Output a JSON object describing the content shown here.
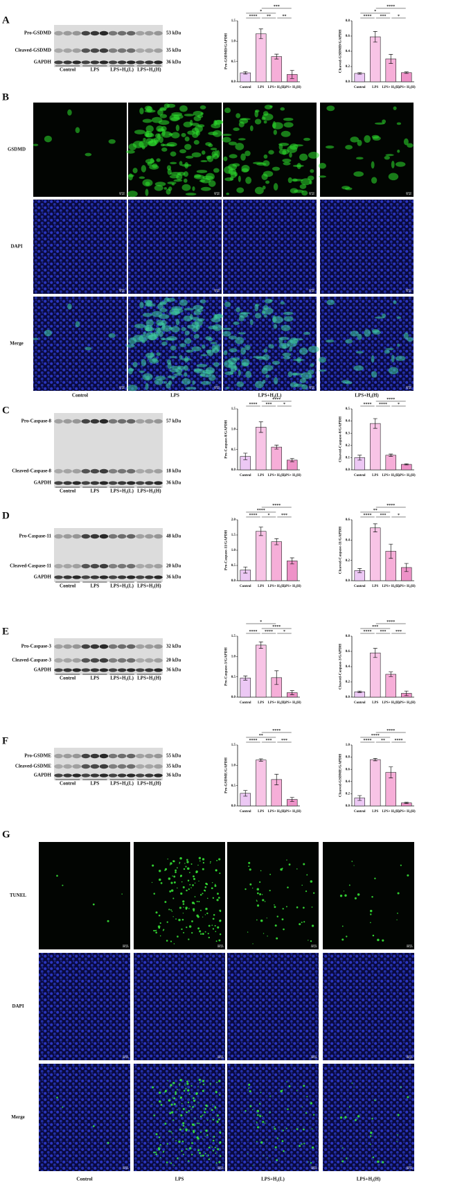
{
  "panel_letters": [
    "A",
    "B",
    "C",
    "D",
    "E",
    "F",
    "G"
  ],
  "blots": [
    {
      "bands": [
        {
          "name": "Pro-GSDMD",
          "size": "53 kDa"
        },
        {
          "name": "Cleaved-GSDMD",
          "size": "35 kDa"
        },
        {
          "name": "GAPDH",
          "size": "36 kDa"
        }
      ],
      "groups": [
        "Control",
        "LPS",
        "LPS+H₂(L)",
        "LPS+H₂(H)"
      ]
    },
    {
      "bands": [
        {
          "name": "Pro-Caspase-8",
          "size": "57 kDa"
        },
        {
          "name": "Cleaved-Caspase-8",
          "size": "18 kDa"
        },
        {
          "name": "GAPDH",
          "size": "36 kDa"
        }
      ],
      "groups": [
        "Control",
        "LPS",
        "LPS+H₂(L)",
        "LPS+H₂(H)"
      ]
    },
    {
      "bands": [
        {
          "name": "Pro-Caspase-11",
          "size": "48 kDa"
        },
        {
          "name": "Cleaved-Caspase-11",
          "size": "20 kDa"
        },
        {
          "name": "GAPDH",
          "size": "36 kDa"
        }
      ],
      "groups": [
        "Control",
        "LPS",
        "LPS+H₂(L)",
        "LPS+H₂(H)"
      ]
    },
    {
      "bands": [
        {
          "name": "Pro-Caspase-3",
          "size": "32 kDa"
        },
        {
          "name": "Cleaved-Caspase-3",
          "size": "20 kDa"
        },
        {
          "name": "GAPDH",
          "size": "36 kDa"
        }
      ],
      "groups": [
        "Control",
        "LPS",
        "LPS+H₂(L)",
        "LPS+H₂(H)"
      ]
    },
    {
      "bands": [
        {
          "name": "Pro-GSDME",
          "size": "55 kDa"
        },
        {
          "name": "Cleaved-GSDME",
          "size": "35 kDa"
        },
        {
          "name": "GAPDH",
          "size": "36 kDa"
        }
      ],
      "groups": [
        "Control",
        "LPS",
        "LPS+H₂(L)",
        "LPS+H₂(H)"
      ]
    }
  ],
  "imaging": [
    {
      "rows": [
        "GSDMD",
        "DAPI",
        "Merge"
      ],
      "columns": [
        "Control",
        "LPS",
        "LPS+H₂(L)",
        "LPS+H₂(H)"
      ],
      "scale_bar": "50 μm"
    },
    {
      "rows": [
        "TUNEL",
        "DAPI",
        "Merge"
      ],
      "columns": [
        "Control",
        "LPS",
        "LPS+H₂(L)",
        "LPS+H₂(H)"
      ],
      "scale_bar": "100 μm"
    }
  ],
  "chart_data": [
    {
      "type": "bar",
      "ylabel": "Pro-GSDMD/GAPDH",
      "categories": [
        "Control",
        "LPS",
        "LPS+ H₂(L)",
        "LPS+ H₂(H)"
      ],
      "values": [
        0.22,
        1.18,
        0.62,
        0.18
      ],
      "errors": [
        0.03,
        0.12,
        0.06,
        0.1
      ],
      "colors": [
        "#ecc8f4",
        "#f8c4e6",
        "#f6aed8",
        "#ee92c8"
      ],
      "ylim": [
        0,
        1.5
      ],
      "yticks": [
        {
          "value": 0,
          "label": "0.0"
        },
        0.5,
        {
          "value": 1,
          "label": "1.0"
        },
        1.5
      ],
      "significance": [
        {
          "pair": [
            "Control",
            "LPS"
          ],
          "label": "****"
        },
        {
          "pair": [
            "LPS",
            "LPS+ H₂(L)"
          ],
          "label": "**"
        },
        {
          "pair": [
            "LPS+ H₂(L)",
            "LPS+ H₂(H)"
          ],
          "label": "**"
        },
        {
          "pair": [
            "Control",
            "LPS+ H₂(L)"
          ],
          "label": "*"
        },
        {
          "pair": [
            "LPS",
            "LPS+ H₂(H)"
          ],
          "label": "***"
        }
      ]
    },
    {
      "type": "bar",
      "ylabel": "Cleaved-GSDMD/GAPDH",
      "categories": [
        "Control",
        "LPS",
        "LPS+ H₂(L)",
        "LPS+ H₂(H)"
      ],
      "values": [
        0.11,
        0.59,
        0.3,
        0.12
      ],
      "errors": [
        0.01,
        0.07,
        0.06,
        0.01
      ],
      "colors": [
        "#ecc8f4",
        "#f8c4e6",
        "#f6aed8",
        "#ee92c8"
      ],
      "ylim": [
        0,
        0.8
      ],
      "yticks": [
        {
          "value": 0,
          "label": "0.0"
        },
        0.2,
        0.4,
        0.6,
        0.8
      ],
      "significance": [
        {
          "pair": [
            "Control",
            "LPS"
          ],
          "label": "****"
        },
        {
          "pair": [
            "LPS",
            "LPS+ H₂(L)"
          ],
          "label": "***"
        },
        {
          "pair": [
            "LPS+ H₂(L)",
            "LPS+ H₂(H)"
          ],
          "label": "*"
        },
        {
          "pair": [
            "Control",
            "LPS+ H₂(L)"
          ],
          "label": "*"
        },
        {
          "pair": [
            "LPS",
            "LPS+ H₂(H)"
          ],
          "label": "****"
        }
      ]
    },
    {
      "type": "bar",
      "ylabel": "Pro-Caspase-8/GAPDH",
      "categories": [
        "Control",
        "LPS",
        "LPS+ H₂(L)",
        "LPS+ H₂(H)"
      ],
      "values": [
        0.33,
        1.05,
        0.56,
        0.24
      ],
      "errors": [
        0.08,
        0.13,
        0.05,
        0.04
      ],
      "colors": [
        "#ecc8f4",
        "#f8c4e6",
        "#f6aed8",
        "#ee92c8"
      ],
      "ylim": [
        0,
        1.5
      ],
      "yticks": [
        {
          "value": 0,
          "label": "0.0"
        },
        0.5,
        {
          "value": 1,
          "label": "1.0"
        },
        1.5
      ],
      "significance": [
        {
          "pair": [
            "Control",
            "LPS"
          ],
          "label": "****"
        },
        {
          "pair": [
            "LPS",
            "LPS+ H₂(L)"
          ],
          "label": "***"
        },
        {
          "pair": [
            "LPS+ H₂(L)",
            "LPS+ H₂(H)"
          ],
          "label": "*"
        },
        {
          "pair": [
            "LPS",
            "LPS+ H₂(H)"
          ],
          "label": "****"
        }
      ]
    },
    {
      "type": "bar",
      "ylabel": "Cleaved-Caspase-8/GAPDH",
      "categories": [
        "Control",
        "LPS",
        "LPS+ H₂(L)",
        "LPS+ H₂(H)"
      ],
      "values": [
        0.1,
        0.38,
        0.12,
        0.045
      ],
      "errors": [
        0.02,
        0.04,
        0.01,
        0.005
      ],
      "colors": [
        "#ecc8f4",
        "#f8c4e6",
        "#f6aed8",
        "#ee92c8"
      ],
      "ylim": [
        0,
        0.5
      ],
      "yticks": [
        {
          "value": 0,
          "label": "0.0"
        },
        0.1,
        0.2,
        0.3,
        0.4,
        0.5
      ],
      "significance": [
        {
          "pair": [
            "Control",
            "LPS"
          ],
          "label": "****"
        },
        {
          "pair": [
            "LPS",
            "LPS+ H₂(L)"
          ],
          "label": "****"
        },
        {
          "pair": [
            "LPS+ H₂(L)",
            "LPS+ H₂(H)"
          ],
          "label": "*"
        },
        {
          "pair": [
            "LPS",
            "LPS+ H₂(H)"
          ],
          "label": "****"
        }
      ]
    },
    {
      "type": "bar",
      "ylabel": "Pro-Caspase-11/GAPDH",
      "categories": [
        "Control",
        "LPS",
        "LPS+ H₂(L)",
        "LPS+ H₂(H)"
      ],
      "values": [
        0.35,
        1.62,
        1.28,
        0.65
      ],
      "errors": [
        0.1,
        0.14,
        0.1,
        0.1
      ],
      "colors": [
        "#ecc8f4",
        "#f8c4e6",
        "#f6aed8",
        "#ee92c8"
      ],
      "ylim": [
        0,
        2
      ],
      "yticks": [
        {
          "value": 0,
          "label": "0.0"
        },
        0.5,
        {
          "value": 1,
          "label": "1.0"
        },
        1.5,
        {
          "value": 2,
          "label": "2.0"
        }
      ],
      "significance": [
        {
          "pair": [
            "Control",
            "LPS"
          ],
          "label": "****"
        },
        {
          "pair": [
            "LPS",
            "LPS+ H₂(L)"
          ],
          "label": "*"
        },
        {
          "pair": [
            "LPS+ H₂(L)",
            "LPS+ H₂(H)"
          ],
          "label": "***"
        },
        {
          "pair": [
            "Control",
            "LPS+ H₂(L)"
          ],
          "label": "****"
        },
        {
          "pair": [
            "LPS",
            "LPS+ H₂(H)"
          ],
          "label": "****"
        }
      ]
    },
    {
      "type": "bar",
      "ylabel": "Cleaved-Caspase-11/GAPDH",
      "categories": [
        "Control",
        "LPS",
        "LPS+ H₂(L)",
        "LPS+ H₂(H)"
      ],
      "values": [
        0.1,
        0.52,
        0.29,
        0.13
      ],
      "errors": [
        0.02,
        0.04,
        0.07,
        0.04
      ],
      "colors": [
        "#ecc8f4",
        "#f8c4e6",
        "#f6aed8",
        "#ee92c8"
      ],
      "ylim": [
        0,
        0.6
      ],
      "yticks": [
        {
          "value": 0,
          "label": "0.0"
        },
        0.2,
        0.4,
        0.6
      ],
      "significance": [
        {
          "pair": [
            "Control",
            "LPS"
          ],
          "label": "****"
        },
        {
          "pair": [
            "LPS",
            "LPS+ H₂(L)"
          ],
          "label": "***"
        },
        {
          "pair": [
            "LPS+ H₂(L)",
            "LPS+ H₂(H)"
          ],
          "label": "*"
        },
        {
          "pair": [
            "Control",
            "LPS+ H₂(L)"
          ],
          "label": "**"
        },
        {
          "pair": [
            "LPS",
            "LPS+ H₂(H)"
          ],
          "label": "****"
        }
      ]
    },
    {
      "type": "bar",
      "ylabel": "Pro-Caspase-3/GAPDH",
      "categories": [
        "Control",
        "LPS",
        "LPS+ H₂(L)",
        "LPS+ H₂(H)"
      ],
      "values": [
        0.47,
        1.28,
        0.48,
        0.11
      ],
      "errors": [
        0.05,
        0.08,
        0.17,
        0.05
      ],
      "colors": [
        "#ecc8f4",
        "#f8c4e6",
        "#f6aed8",
        "#ee92c8"
      ],
      "ylim": [
        0,
        1.5
      ],
      "yticks": [
        {
          "value": 0,
          "label": "0.0"
        },
        0.5,
        {
          "value": 1,
          "label": "1.0"
        },
        1.5
      ],
      "significance": [
        {
          "pair": [
            "Control",
            "LPS"
          ],
          "label": "****"
        },
        {
          "pair": [
            "LPS",
            "LPS+ H₂(L)"
          ],
          "label": "****"
        },
        {
          "pair": [
            "LPS+ H₂(L)",
            "LPS+ H₂(H)"
          ],
          "label": "*"
        },
        {
          "pair": [
            "LPS",
            "LPS+ H₂(H)"
          ],
          "label": "****"
        },
        {
          "pair": [
            "Control",
            "LPS+ H₂(L)"
          ],
          "label": "*"
        }
      ]
    },
    {
      "type": "bar",
      "ylabel": "Cleaved-Caspase-3/GAPDH",
      "categories": [
        "Control",
        "LPS",
        "LPS+ H₂(L)",
        "LPS+ H₂(H)"
      ],
      "values": [
        0.07,
        0.58,
        0.3,
        0.05
      ],
      "errors": [
        0.01,
        0.06,
        0.03,
        0.03
      ],
      "colors": [
        "#ecc8f4",
        "#f8c4e6",
        "#f6aed8",
        "#ee92c8"
      ],
      "ylim": [
        0,
        0.8
      ],
      "yticks": [
        {
          "value": 0,
          "label": "0.0"
        },
        0.2,
        0.4,
        0.6,
        0.8
      ],
      "significance": [
        {
          "pair": [
            "Control",
            "LPS"
          ],
          "label": "****"
        },
        {
          "pair": [
            "LPS",
            "LPS+ H₂(L)"
          ],
          "label": "***"
        },
        {
          "pair": [
            "LPS+ H₂(L)",
            "LPS+ H₂(H)"
          ],
          "label": "***"
        },
        {
          "pair": [
            "Control",
            "LPS+ H₂(L)"
          ],
          "label": "***"
        },
        {
          "pair": [
            "LPS",
            "LPS+ H₂(H)"
          ],
          "label": "****"
        }
      ]
    },
    {
      "type": "bar",
      "ylabel": "Pro-GSDME/GAPDH",
      "categories": [
        "Control",
        "LPS",
        "LPS+ H₂(L)",
        "LPS+ H₂(H)"
      ],
      "values": [
        0.31,
        1.13,
        0.65,
        0.16
      ],
      "errors": [
        0.07,
        0.03,
        0.13,
        0.05
      ],
      "colors": [
        "#ecc8f4",
        "#f8c4e6",
        "#f6aed8",
        "#ee92c8"
      ],
      "ylim": [
        0,
        1.5
      ],
      "yticks": [
        {
          "value": 0,
          "label": "0.0"
        },
        0.5,
        {
          "value": 1,
          "label": "1.0"
        },
        1.5
      ],
      "significance": [
        {
          "pair": [
            "Control",
            "LPS"
          ],
          "label": "****"
        },
        {
          "pair": [
            "LPS",
            "LPS+ H₂(L)"
          ],
          "label": "***"
        },
        {
          "pair": [
            "LPS+ H₂(L)",
            "LPS+ H₂(H)"
          ],
          "label": "***"
        },
        {
          "pair": [
            "Control",
            "LPS+ H₂(L)"
          ],
          "label": "**"
        },
        {
          "pair": [
            "LPS",
            "LPS+ H₂(H)"
          ],
          "label": "****"
        }
      ]
    },
    {
      "type": "bar",
      "ylabel": "Cleaved-GSDME/GAPDH",
      "categories": [
        "Control",
        "LPS",
        "LPS+ H₂(L)",
        "LPS+ H₂(H)"
      ],
      "values": [
        0.13,
        0.76,
        0.55,
        0.05
      ],
      "errors": [
        0.04,
        0.02,
        0.09,
        0.01
      ],
      "colors": [
        "#ecc8f4",
        "#f8c4e6",
        "#f6aed8",
        "#ee92c8"
      ],
      "ylim": [
        0,
        1
      ],
      "yticks": [
        {
          "value": 0,
          "label": "0.0"
        },
        0.2,
        0.4,
        0.6,
        0.8,
        {
          "value": 1,
          "label": "1.0"
        }
      ],
      "significance": [
        {
          "pair": [
            "Control",
            "LPS"
          ],
          "label": "****"
        },
        {
          "pair": [
            "LPS",
            "LPS+ H₂(L)"
          ],
          "label": "**"
        },
        {
          "pair": [
            "LPS+ H₂(L)",
            "LPS+ H₂(H)"
          ],
          "label": "****"
        },
        {
          "pair": [
            "Control",
            "LPS+ H₂(L)"
          ],
          "label": "****"
        },
        {
          "pair": [
            "LPS",
            "LPS+ H₂(H)"
          ],
          "label": "****"
        }
      ]
    }
  ]
}
